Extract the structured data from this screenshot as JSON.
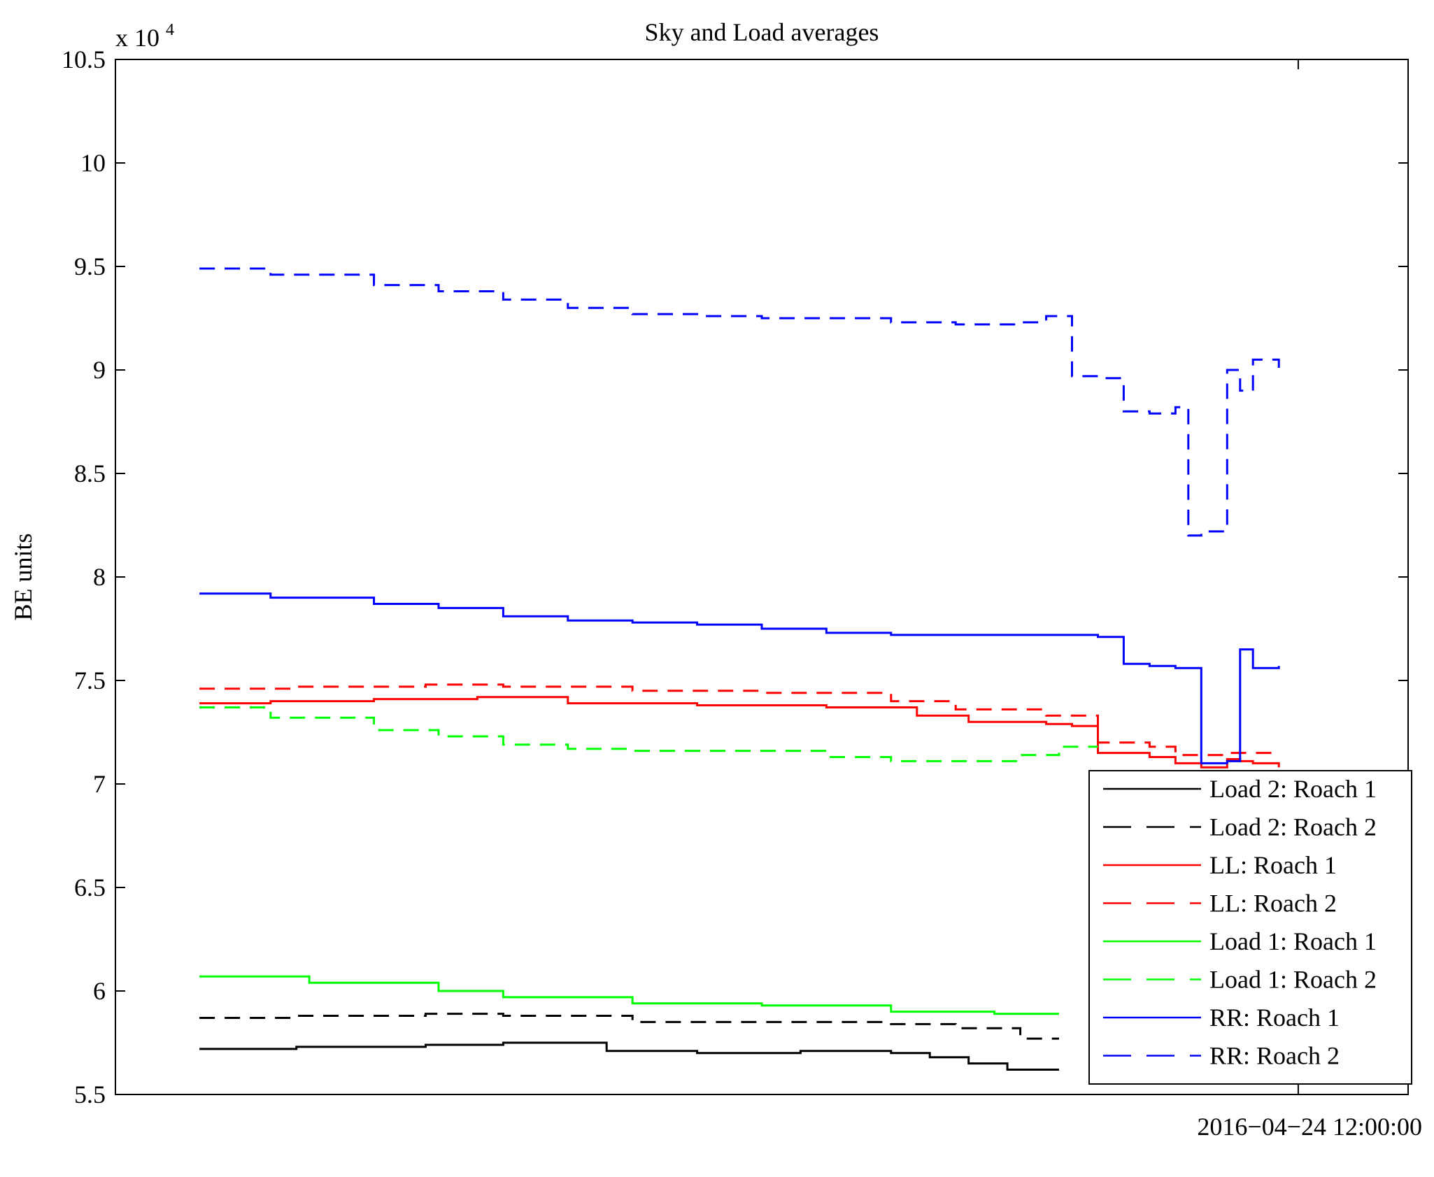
{
  "chart_data": {
    "type": "line",
    "title": "Sky and Load averages",
    "ylabel": "BE units",
    "y_scale_label": "x 10",
    "y_scale_exponent": "4",
    "ylim": [
      55000,
      105000
    ],
    "y_ticks": [
      {
        "value": 55000,
        "label": "5.5"
      },
      {
        "value": 60000,
        "label": "6"
      },
      {
        "value": 65000,
        "label": "6.5"
      },
      {
        "value": 70000,
        "label": "7"
      },
      {
        "value": 75000,
        "label": "7.5"
      },
      {
        "value": 80000,
        "label": "8"
      },
      {
        "value": 85000,
        "label": "8.5"
      },
      {
        "value": 90000,
        "label": "9"
      },
      {
        "value": 95000,
        "label": "9.5"
      },
      {
        "value": 100000,
        "label": "10"
      },
      {
        "value": 105000,
        "label": "10.5"
      }
    ],
    "xlim": [
      0,
      1
    ],
    "x_ticks": [
      {
        "value": 0.915,
        "label": "2016−04−24 12:00:00"
      }
    ],
    "grid": false,
    "legend_position": "bottom-right",
    "series": [
      {
        "name": "Load 2: Roach 1",
        "color": "#000000",
        "dash": "solid",
        "x": [
          0.065,
          0.14,
          0.24,
          0.3,
          0.38,
          0.45,
          0.53,
          0.6,
          0.63,
          0.66,
          0.69,
          0.73
        ],
        "y": [
          57200,
          57300,
          57400,
          57500,
          57100,
          57000,
          57100,
          57000,
          56800,
          56500,
          56200,
          56200
        ]
      },
      {
        "name": "Load 2: Roach 2",
        "color": "#000000",
        "dash": "dashed",
        "x": [
          0.065,
          0.14,
          0.24,
          0.3,
          0.4,
          0.5,
          0.6,
          0.65,
          0.7,
          0.73
        ],
        "y": [
          58700,
          58800,
          58900,
          58800,
          58500,
          58500,
          58400,
          58200,
          57700,
          57700
        ]
      },
      {
        "name": "LL: Roach 1",
        "color": "#ff0000",
        "dash": "solid",
        "x": [
          0.065,
          0.12,
          0.2,
          0.28,
          0.35,
          0.45,
          0.55,
          0.62,
          0.66,
          0.72,
          0.74,
          0.76,
          0.8,
          0.82,
          0.84,
          0.86,
          0.87,
          0.88,
          0.9
        ],
        "y": [
          73900,
          74000,
          74100,
          74200,
          73900,
          73800,
          73700,
          73300,
          73000,
          72900,
          72800,
          71500,
          71300,
          71000,
          70800,
          71200,
          71100,
          71000,
          70800
        ]
      },
      {
        "name": "LL: Roach 2",
        "color": "#ff0000",
        "dash": "dashed",
        "x": [
          0.065,
          0.14,
          0.24,
          0.3,
          0.4,
          0.5,
          0.6,
          0.65,
          0.72,
          0.74,
          0.76,
          0.8,
          0.82,
          0.86,
          0.9
        ],
        "y": [
          74600,
          74700,
          74800,
          74700,
          74500,
          74400,
          74000,
          73600,
          73300,
          73300,
          72000,
          71800,
          71400,
          71500,
          71400
        ]
      },
      {
        "name": "Load 1: Roach 1",
        "color": "#00ff00",
        "dash": "solid",
        "x": [
          0.065,
          0.15,
          0.25,
          0.3,
          0.4,
          0.5,
          0.6,
          0.68,
          0.73
        ],
        "y": [
          60700,
          60400,
          60000,
          59700,
          59400,
          59300,
          59000,
          58900,
          58900
        ]
      },
      {
        "name": "Load 1: Roach 2",
        "color": "#00ff00",
        "dash": "dashed",
        "x": [
          0.065,
          0.12,
          0.2,
          0.25,
          0.3,
          0.35,
          0.4,
          0.5,
          0.55,
          0.6,
          0.64,
          0.7,
          0.73,
          0.76
        ],
        "y": [
          73700,
          73200,
          72600,
          72300,
          71900,
          71700,
          71600,
          71600,
          71300,
          71100,
          71100,
          71400,
          71800,
          71800
        ]
      },
      {
        "name": "RR: Roach 1",
        "color": "#0000ff",
        "dash": "solid",
        "x": [
          0.065,
          0.12,
          0.2,
          0.25,
          0.3,
          0.35,
          0.4,
          0.45,
          0.5,
          0.55,
          0.6,
          0.65,
          0.72,
          0.76,
          0.78,
          0.8,
          0.82,
          0.84,
          0.86,
          0.87,
          0.88,
          0.9
        ],
        "y": [
          79200,
          79000,
          78700,
          78500,
          78100,
          77900,
          77800,
          77700,
          77500,
          77300,
          77200,
          77200,
          77200,
          77100,
          75800,
          75700,
          75600,
          71000,
          71100,
          76500,
          75600,
          75700
        ]
      },
      {
        "name": "RR: Roach 2",
        "color": "#0000ff",
        "dash": "dashed",
        "x": [
          0.065,
          0.12,
          0.2,
          0.25,
          0.3,
          0.35,
          0.4,
          0.45,
          0.5,
          0.55,
          0.6,
          0.65,
          0.7,
          0.72,
          0.74,
          0.76,
          0.78,
          0.8,
          0.82,
          0.83,
          0.84,
          0.86,
          0.87,
          0.88,
          0.9
        ],
        "y": [
          94900,
          94600,
          94100,
          93800,
          93400,
          93000,
          92700,
          92600,
          92500,
          92500,
          92300,
          92200,
          92300,
          92600,
          89700,
          89600,
          88000,
          87900,
          88200,
          82000,
          82200,
          90000,
          89000,
          90500,
          90100
        ]
      }
    ]
  }
}
